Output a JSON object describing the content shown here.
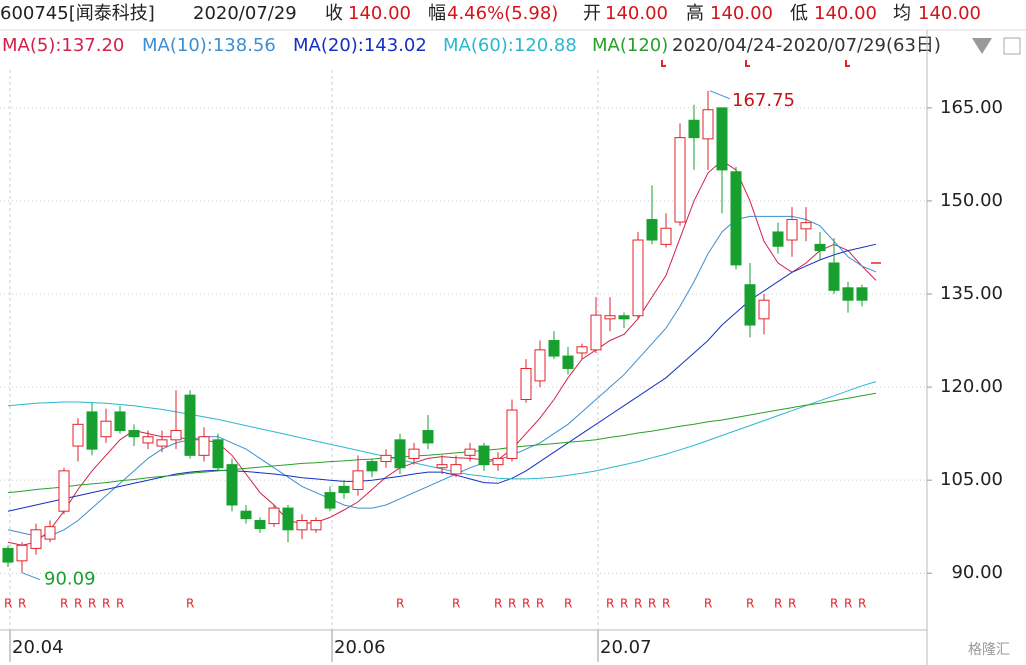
{
  "header": {
    "code": "600745[闻泰科技]",
    "date": "2020/07/29",
    "fields": [
      {
        "label": "收",
        "value": "140.00"
      },
      {
        "label": "幅",
        "value": "4.46%(5.98)"
      },
      {
        "label": "开",
        "value": "140.00"
      },
      {
        "label": "高",
        "value": "140.00"
      },
      {
        "label": "低",
        "value": "140.00"
      },
      {
        "label": "均",
        "value": "140.00"
      }
    ],
    "range": "2020/04/24-2020/07/29(63日)",
    "watermark": "格隆汇"
  },
  "chart_data": {
    "type": "candlestick",
    "categories": [
      "20.04",
      null,
      null,
      null,
      null,
      null,
      null,
      null,
      null,
      null,
      null,
      null,
      null,
      null,
      null,
      null,
      null,
      null,
      null,
      null,
      null,
      null,
      null,
      "20.06",
      null,
      null,
      null,
      null,
      null,
      null,
      null,
      null,
      null,
      null,
      null,
      null,
      null,
      null,
      null,
      null,
      null,
      null,
      "20.07",
      null,
      null,
      null,
      null,
      null,
      null,
      null,
      null,
      null,
      null,
      null,
      null,
      null,
      null,
      null,
      null,
      null,
      null,
      null,
      null
    ],
    "candles": {
      "open": [
        94,
        92,
        94,
        95.5,
        100,
        110.5,
        116,
        112,
        116,
        113,
        111,
        110.5,
        111.5,
        118.7,
        109,
        111.5,
        107.5,
        100,
        98.5,
        98,
        100.5,
        97,
        97,
        103,
        104,
        103.5,
        108,
        108,
        111.5,
        108.5,
        113,
        107,
        106,
        109,
        110.5,
        107.5,
        108.5,
        118,
        121,
        127.5,
        125,
        125.5,
        126,
        131,
        131.5,
        131.5,
        147,
        143,
        146.6,
        163,
        160,
        165,
        154.7,
        136.5,
        131,
        145,
        143.7,
        145.5,
        143,
        140,
        136,
        136,
        140
      ],
      "high": [
        94.5,
        95,
        98,
        98.5,
        107,
        115,
        117.5,
        116.5,
        117,
        114,
        113,
        113,
        119.5,
        119.5,
        113.5,
        112.5,
        108.5,
        101,
        99,
        101,
        101,
        99.5,
        99,
        104,
        105,
        109,
        108.5,
        110,
        112.5,
        111,
        115.5,
        109,
        109,
        111,
        111,
        109.5,
        118,
        124.5,
        127.5,
        129,
        126.5,
        127,
        134.5,
        134.5,
        132,
        145,
        152.5,
        148,
        162.5,
        165.5,
        167.75,
        165,
        155.5,
        140,
        135,
        146.5,
        149,
        149,
        145,
        144,
        137,
        136.5,
        140
      ],
      "low": [
        91,
        90.09,
        93,
        95,
        99.5,
        108,
        109,
        111,
        112.5,
        110.5,
        110,
        109.5,
        110,
        108.5,
        108,
        106.5,
        100,
        98,
        96.5,
        97.5,
        95,
        95.5,
        96.5,
        100,
        102,
        102.5,
        105.5,
        107,
        106,
        107.5,
        110,
        106,
        105.5,
        108,
        106.5,
        106.5,
        108,
        117.5,
        120,
        124.5,
        122,
        124.5,
        125.5,
        129,
        129.5,
        131,
        143,
        142.5,
        146,
        155,
        155,
        148,
        139,
        128,
        128.5,
        141.5,
        141,
        143.5,
        140.5,
        135,
        132,
        133,
        140
      ],
      "close": [
        91.8,
        94.5,
        97,
        97.5,
        106.5,
        114,
        110,
        114.5,
        113,
        112,
        112,
        111.5,
        113,
        109,
        112,
        107,
        101,
        98.8,
        97.2,
        100.5,
        97,
        98.5,
        98.5,
        100.5,
        103,
        106.5,
        106.5,
        109,
        107,
        110,
        111,
        107.5,
        107.5,
        110,
        107.5,
        108.5,
        116.3,
        123,
        126,
        125,
        123,
        126.5,
        131.6,
        131.5,
        131,
        143.7,
        143.7,
        145.6,
        160.2,
        160.2,
        164.7,
        155,
        139.7,
        130,
        134,
        142.7,
        147,
        146.5,
        142,
        135.6,
        134,
        134,
        140
      ]
    },
    "up_color": "#e2242b",
    "down_color": "#17a02f",
    "series": [
      {
        "name": "MA(5):137.20",
        "color": "#d4214a",
        "values": [
          95,
          94.5,
          95,
          97,
          100,
          103.5,
          106.5,
          109,
          111.5,
          113,
          112.5,
          112,
          112,
          111.5,
          111.5,
          111,
          109,
          106,
          103,
          101,
          98.5,
          98,
          98.2,
          99,
          100.2,
          101.5,
          103.5,
          105.5,
          107,
          107.8,
          108.5,
          108.8,
          108.6,
          108.5,
          108.3,
          108.3,
          110,
          112.5,
          115,
          118,
          121.5,
          124.5,
          126,
          127.5,
          128.5,
          131,
          134.5,
          138,
          144,
          150,
          154.5,
          156.5,
          155,
          150,
          143.5,
          140,
          138.5,
          140,
          142,
          143,
          142,
          139.5,
          137.2
        ]
      },
      {
        "name": "MA(10):138.56",
        "color": "#3d8fd1",
        "values": [
          97,
          96.5,
          96,
          96,
          97,
          98.5,
          100.5,
          102.5,
          104.5,
          106.5,
          108.5,
          110,
          111,
          111.5,
          112,
          112,
          111,
          110,
          108.5,
          107,
          105.5,
          104,
          103,
          102,
          101,
          100.5,
          100.5,
          101,
          102,
          103,
          104,
          105,
          106,
          107,
          107.8,
          108.3,
          109,
          110,
          111,
          112.5,
          114,
          116,
          118,
          120,
          122,
          124.5,
          127,
          129.5,
          133,
          137,
          141.5,
          145,
          147,
          147.5,
          147.5,
          147.5,
          147.5,
          147,
          146,
          143.5,
          141,
          139.5,
          138.56
        ]
      },
      {
        "name": "MA(20):143.02",
        "color": "#1531c4",
        "values": [
          100,
          100.5,
          101,
          101.5,
          102,
          102.5,
          103,
          103.5,
          104,
          104.5,
          105,
          105.5,
          106,
          106.3,
          106.5,
          106.6,
          106.5,
          106.4,
          106.2,
          106,
          105.7,
          105.4,
          105.2,
          105,
          104.8,
          104.8,
          105,
          105.3,
          105.6,
          106,
          106.3,
          106.3,
          105.8,
          105.2,
          104.6,
          104.5,
          105.3,
          106.5,
          108,
          109.5,
          111,
          112.5,
          114,
          115.5,
          117,
          118.5,
          120,
          121.5,
          123.5,
          125.5,
          127.5,
          130,
          132,
          134,
          135.5,
          137,
          138.5,
          139.5,
          140.5,
          141.3,
          142,
          142.5,
          143.02
        ]
      },
      {
        "name": "MA(60):120.88",
        "color": "#2bb8cf",
        "values": [
          117,
          117.2,
          117.4,
          117.5,
          117.6,
          117.6,
          117.5,
          117.4,
          117.2,
          117,
          116.7,
          116.4,
          116,
          115.6,
          115.2,
          114.8,
          114.3,
          113.8,
          113.3,
          112.8,
          112.3,
          111.8,
          111.3,
          110.8,
          110.3,
          109.8,
          109.3,
          108.8,
          108.3,
          107.8,
          107.3,
          106.8,
          106.3,
          105.9,
          105.6,
          105.3,
          105.2,
          105.2,
          105.3,
          105.5,
          105.8,
          106.1,
          106.5,
          107,
          107.5,
          108,
          108.6,
          109.2,
          109.9,
          110.6,
          111.4,
          112.2,
          113,
          113.8,
          114.6,
          115.4,
          116.2,
          117,
          117.8,
          118.6,
          119.4,
          120.2,
          120.88
        ]
      },
      {
        "name": "MA(120)",
        "color": "#2aa02a",
        "values": [
          103,
          103.2,
          103.5,
          103.7,
          103.9,
          104.2,
          104.4,
          104.6,
          104.9,
          105.1,
          105.4,
          105.6,
          105.8,
          106.1,
          106.3,
          106.5,
          106.7,
          106.9,
          107.1,
          107.3,
          107.5,
          107.7,
          107.8,
          108,
          108.1,
          108.3,
          108.4,
          108.6,
          108.7,
          108.9,
          109,
          109.2,
          109.4,
          109.6,
          109.8,
          110,
          110.3,
          110.5,
          110.7,
          110.9,
          111.1,
          111.3,
          111.5,
          111.9,
          112.2,
          112.6,
          112.9,
          113.3,
          113.7,
          114,
          114.4,
          114.7,
          115.1,
          115.5,
          115.9,
          116.3,
          116.7,
          117.1,
          117.4,
          117.8,
          118.2,
          118.6,
          119
        ]
      }
    ],
    "markers": [
      "R",
      "R",
      null,
      null,
      "R",
      "R",
      "R",
      "R",
      "R",
      null,
      null,
      null,
      null,
      "R",
      null,
      null,
      null,
      null,
      null,
      null,
      null,
      null,
      null,
      null,
      null,
      null,
      null,
      null,
      "R",
      null,
      null,
      null,
      "R",
      null,
      null,
      "R",
      "R",
      "R",
      "R",
      null,
      "R",
      null,
      null,
      "R",
      "R",
      "R",
      "R",
      "R",
      null,
      null,
      "R",
      null,
      null,
      "R",
      null,
      "R",
      "R",
      null,
      null,
      "R",
      "R",
      "R",
      null
    ],
    "high_label": "167.75",
    "low_label": "90.09",
    "ylim": [
      87.3,
      171.1
    ],
    "yticks": [
      {
        "value": 165,
        "label": "165.00"
      },
      {
        "value": 150,
        "label": "150.00"
      },
      {
        "value": 135,
        "label": "135.00"
      },
      {
        "value": 120,
        "label": "120.00"
      },
      {
        "value": 105,
        "label": "105.00"
      },
      {
        "value": 90,
        "label": "90.00"
      }
    ],
    "grid": true
  }
}
